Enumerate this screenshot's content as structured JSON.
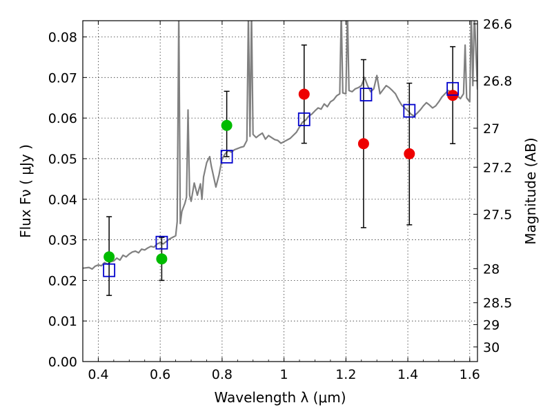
{
  "chart_data": {
    "type": "scatter",
    "xlabel": "Wavelength  λ (μm)",
    "ylabel": "Flux  Fν  ( μJy )",
    "y2label": "Magnitude (AB)",
    "xlim": [
      0.35,
      1.625
    ],
    "ylim": [
      0.0,
      0.084
    ],
    "x_ticks": [
      0.4,
      0.6,
      0.8,
      1.0,
      1.2,
      1.4,
      1.6
    ],
    "x_tick_labels": [
      "0.4",
      "0.6",
      "0.8",
      "1",
      "1.2",
      "1.4",
      "1.6"
    ],
    "y_ticks": [
      0.0,
      0.01,
      0.02,
      0.03,
      0.04,
      0.05,
      0.06,
      0.07,
      0.08
    ],
    "y_tick_labels": [
      "0.00",
      "0.01",
      "0.02",
      "0.03",
      "0.04",
      "0.05",
      "0.06",
      "0.07",
      "0.08"
    ],
    "y2_ticks": [
      {
        "label": "26.6",
        "flux": 0.0832
      },
      {
        "label": "26.8",
        "flux": 0.0692
      },
      {
        "label": "27",
        "flux": 0.0575
      },
      {
        "label": "27.2",
        "flux": 0.0479
      },
      {
        "label": "27.5",
        "flux": 0.0363
      },
      {
        "label": "28",
        "flux": 0.0229
      },
      {
        "label": "28.5",
        "flux": 0.0145
      },
      {
        "label": "29",
        "flux": 0.0091
      },
      {
        "label": "30",
        "flux": 0.0036
      }
    ],
    "grid": true,
    "colors": {
      "spectrum": "#808080",
      "model_box": "#0000cc",
      "green_obs": "#00bb00",
      "red_obs": "#ee0000",
      "errorbar": "#000000"
    },
    "series": [
      {
        "kind": "spectrum-line",
        "points": [
          [
            0.35,
            0.023
          ],
          [
            0.37,
            0.0232
          ],
          [
            0.38,
            0.0228
          ],
          [
            0.39,
            0.0235
          ],
          [
            0.4,
            0.0238
          ],
          [
            0.41,
            0.0236
          ],
          [
            0.42,
            0.0244
          ],
          [
            0.43,
            0.024
          ],
          [
            0.44,
            0.0246
          ],
          [
            0.45,
            0.0248
          ],
          [
            0.46,
            0.0255
          ],
          [
            0.47,
            0.025
          ],
          [
            0.48,
            0.0262
          ],
          [
            0.49,
            0.0258
          ],
          [
            0.5,
            0.0265
          ],
          [
            0.51,
            0.027
          ],
          [
            0.52,
            0.0272
          ],
          [
            0.53,
            0.0268
          ],
          [
            0.54,
            0.0277
          ],
          [
            0.55,
            0.0275
          ],
          [
            0.56,
            0.028
          ],
          [
            0.57,
            0.0284
          ],
          [
            0.58,
            0.0282
          ],
          [
            0.59,
            0.029
          ],
          [
            0.6,
            0.0293
          ],
          [
            0.61,
            0.029
          ],
          [
            0.62,
            0.0296
          ],
          [
            0.63,
            0.0302
          ],
          [
            0.64,
            0.0306
          ],
          [
            0.65,
            0.031
          ],
          [
            0.655,
            0.0345
          ],
          [
            0.66,
            0.086
          ],
          [
            0.665,
            0.034
          ],
          [
            0.67,
            0.037
          ],
          [
            0.68,
            0.039
          ],
          [
            0.685,
            0.0405
          ],
          [
            0.69,
            0.062
          ],
          [
            0.695,
            0.041
          ],
          [
            0.7,
            0.0395
          ],
          [
            0.71,
            0.044
          ],
          [
            0.72,
            0.041
          ],
          [
            0.73,
            0.0438
          ],
          [
            0.735,
            0.04
          ],
          [
            0.74,
            0.0455
          ],
          [
            0.75,
            0.049
          ],
          [
            0.76,
            0.0505
          ],
          [
            0.765,
            0.0482
          ],
          [
            0.77,
            0.0465
          ],
          [
            0.78,
            0.043
          ],
          [
            0.79,
            0.046
          ],
          [
            0.8,
            0.05
          ],
          [
            0.81,
            0.0512
          ],
          [
            0.82,
            0.052
          ],
          [
            0.83,
            0.0516
          ],
          [
            0.84,
            0.0522
          ],
          [
            0.85,
            0.0525
          ],
          [
            0.86,
            0.0528
          ],
          [
            0.87,
            0.053
          ],
          [
            0.88,
            0.0545
          ],
          [
            0.885,
            0.086
          ],
          [
            0.89,
            0.0555
          ],
          [
            0.895,
            0.086
          ],
          [
            0.9,
            0.056
          ],
          [
            0.91,
            0.0552
          ],
          [
            0.92,
            0.0558
          ],
          [
            0.93,
            0.0563
          ],
          [
            0.94,
            0.0548
          ],
          [
            0.95,
            0.0557
          ],
          [
            0.96,
            0.0552
          ],
          [
            0.97,
            0.0547
          ],
          [
            0.98,
            0.0545
          ],
          [
            0.99,
            0.0538
          ],
          [
            1.0,
            0.0542
          ],
          [
            1.02,
            0.055
          ],
          [
            1.04,
            0.0565
          ],
          [
            1.05,
            0.0578
          ],
          [
            1.06,
            0.059
          ],
          [
            1.07,
            0.0595
          ],
          [
            1.08,
            0.0605
          ],
          [
            1.09,
            0.061
          ],
          [
            1.1,
            0.0618
          ],
          [
            1.11,
            0.0625
          ],
          [
            1.12,
            0.0622
          ],
          [
            1.13,
            0.0635
          ],
          [
            1.14,
            0.0628
          ],
          [
            1.15,
            0.064
          ],
          [
            1.16,
            0.0645
          ],
          [
            1.17,
            0.0655
          ],
          [
            1.18,
            0.066
          ],
          [
            1.185,
            0.086
          ],
          [
            1.19,
            0.0662
          ],
          [
            1.2,
            0.066
          ],
          [
            1.205,
            0.086
          ],
          [
            1.21,
            0.0668
          ],
          [
            1.22,
            0.0665
          ],
          [
            1.23,
            0.0672
          ],
          [
            1.24,
            0.0675
          ],
          [
            1.25,
            0.068
          ],
          [
            1.26,
            0.07
          ],
          [
            1.27,
            0.068
          ],
          [
            1.28,
            0.0665
          ],
          [
            1.29,
            0.0672
          ],
          [
            1.3,
            0.0705
          ],
          [
            1.31,
            0.066
          ],
          [
            1.32,
            0.067
          ],
          [
            1.33,
            0.068
          ],
          [
            1.34,
            0.0675
          ],
          [
            1.35,
            0.0668
          ],
          [
            1.36,
            0.066
          ],
          [
            1.37,
            0.0645
          ],
          [
            1.38,
            0.0632
          ],
          [
            1.39,
            0.0625
          ],
          [
            1.4,
            0.0618
          ],
          [
            1.41,
            0.061
          ],
          [
            1.42,
            0.0605
          ],
          [
            1.43,
            0.0612
          ],
          [
            1.44,
            0.062
          ],
          [
            1.45,
            0.063
          ],
          [
            1.46,
            0.0638
          ],
          [
            1.47,
            0.0632
          ],
          [
            1.48,
            0.0625
          ],
          [
            1.49,
            0.063
          ],
          [
            1.5,
            0.064
          ],
          [
            1.51,
            0.0652
          ],
          [
            1.52,
            0.066
          ],
          [
            1.53,
            0.0668
          ],
          [
            1.54,
            0.0665
          ],
          [
            1.55,
            0.066
          ],
          [
            1.56,
            0.0655
          ],
          [
            1.57,
            0.0648
          ],
          [
            1.58,
            0.066
          ],
          [
            1.585,
            0.078
          ],
          [
            1.59,
            0.065
          ],
          [
            1.6,
            0.064
          ],
          [
            1.605,
            0.086
          ],
          [
            1.61,
            0.068
          ],
          [
            1.615,
            0.086
          ],
          [
            1.625,
            0.067
          ]
        ]
      },
      {
        "kind": "model-boxes",
        "points": [
          [
            0.435,
            0.0225
          ],
          [
            0.605,
            0.0293
          ],
          [
            0.815,
            0.0505
          ],
          [
            1.065,
            0.0597
          ],
          [
            1.265,
            0.0658
          ],
          [
            1.405,
            0.0618
          ],
          [
            1.545,
            0.0672
          ]
        ]
      },
      {
        "kind": "observed-green",
        "points": [
          {
            "x": 0.435,
            "y": 0.0258,
            "err_lo": 0.0163,
            "err_hi": 0.0357
          },
          {
            "x": 0.605,
            "y": 0.0253,
            "err_lo": 0.02,
            "err_hi": 0.0306
          },
          {
            "x": 0.815,
            "y": 0.0582,
            "err_lo": 0.0505,
            "err_hi": 0.0666
          }
        ]
      },
      {
        "kind": "observed-red",
        "points": [
          {
            "x": 1.065,
            "y": 0.0659,
            "err_lo": 0.0538,
            "err_hi": 0.078
          },
          {
            "x": 1.257,
            "y": 0.0537,
            "err_lo": 0.033,
            "err_hi": 0.0744
          },
          {
            "x": 1.405,
            "y": 0.0512,
            "err_lo": 0.0337,
            "err_hi": 0.0686
          },
          {
            "x": 1.545,
            "y": 0.0656,
            "err_lo": 0.0537,
            "err_hi": 0.0776
          }
        ]
      }
    ]
  }
}
